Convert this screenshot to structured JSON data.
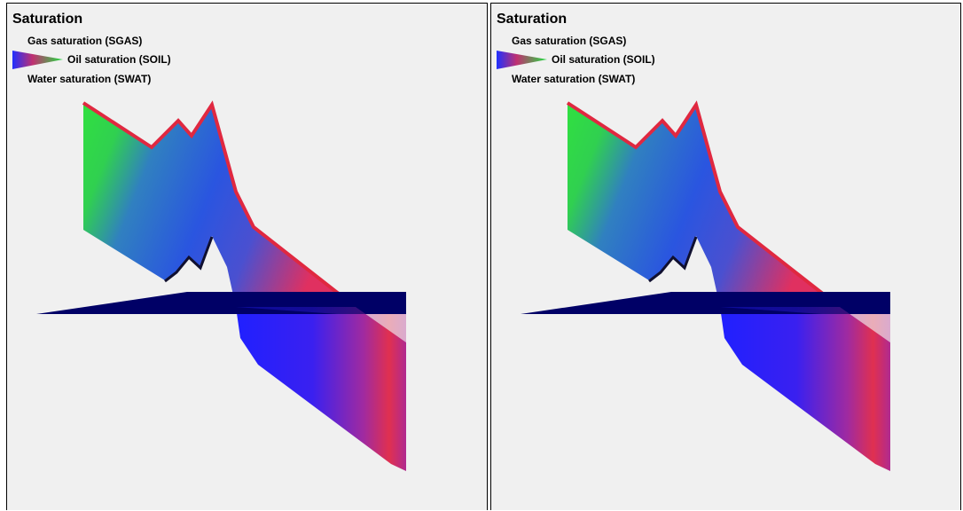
{
  "panels": [
    {
      "title": "Saturation",
      "legend": {
        "gas": "Gas saturation (SGAS)",
        "oil": "Oil saturation (SOIL)",
        "water": "Water saturation (SWAT)"
      }
    },
    {
      "title": "Saturation",
      "legend": {
        "gas": "Gas saturation (SGAS)",
        "oil": "Oil saturation (SOIL)",
        "water": "Water saturation (SWAT)"
      }
    }
  ]
}
